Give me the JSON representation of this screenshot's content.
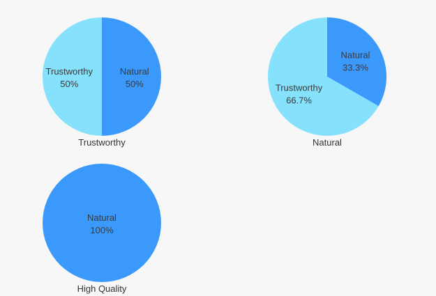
{
  "colors": {
    "natural": "#3b99fc",
    "trustworthy": "#86e1fd",
    "background": "#f7f7f7"
  },
  "chart_data": [
    {
      "type": "pie",
      "title": "Trustworthy",
      "slices": [
        {
          "name": "Natural",
          "value": 50,
          "label": "50%",
          "color": "#3b99fc"
        },
        {
          "name": "Trustworthy",
          "value": 50,
          "label": "50%",
          "color": "#86e1fd"
        }
      ]
    },
    {
      "type": "pie",
      "title": "Natural",
      "slices": [
        {
          "name": "Natural",
          "value": 33.3,
          "label": "33.3%",
          "color": "#3b99fc"
        },
        {
          "name": "Trustworthy",
          "value": 66.7,
          "label": "66.7%",
          "color": "#86e1fd"
        }
      ]
    },
    {
      "type": "pie",
      "title": "High Quality",
      "slices": [
        {
          "name": "Natural",
          "value": 100,
          "label": "100%",
          "color": "#3b99fc"
        }
      ]
    }
  ]
}
